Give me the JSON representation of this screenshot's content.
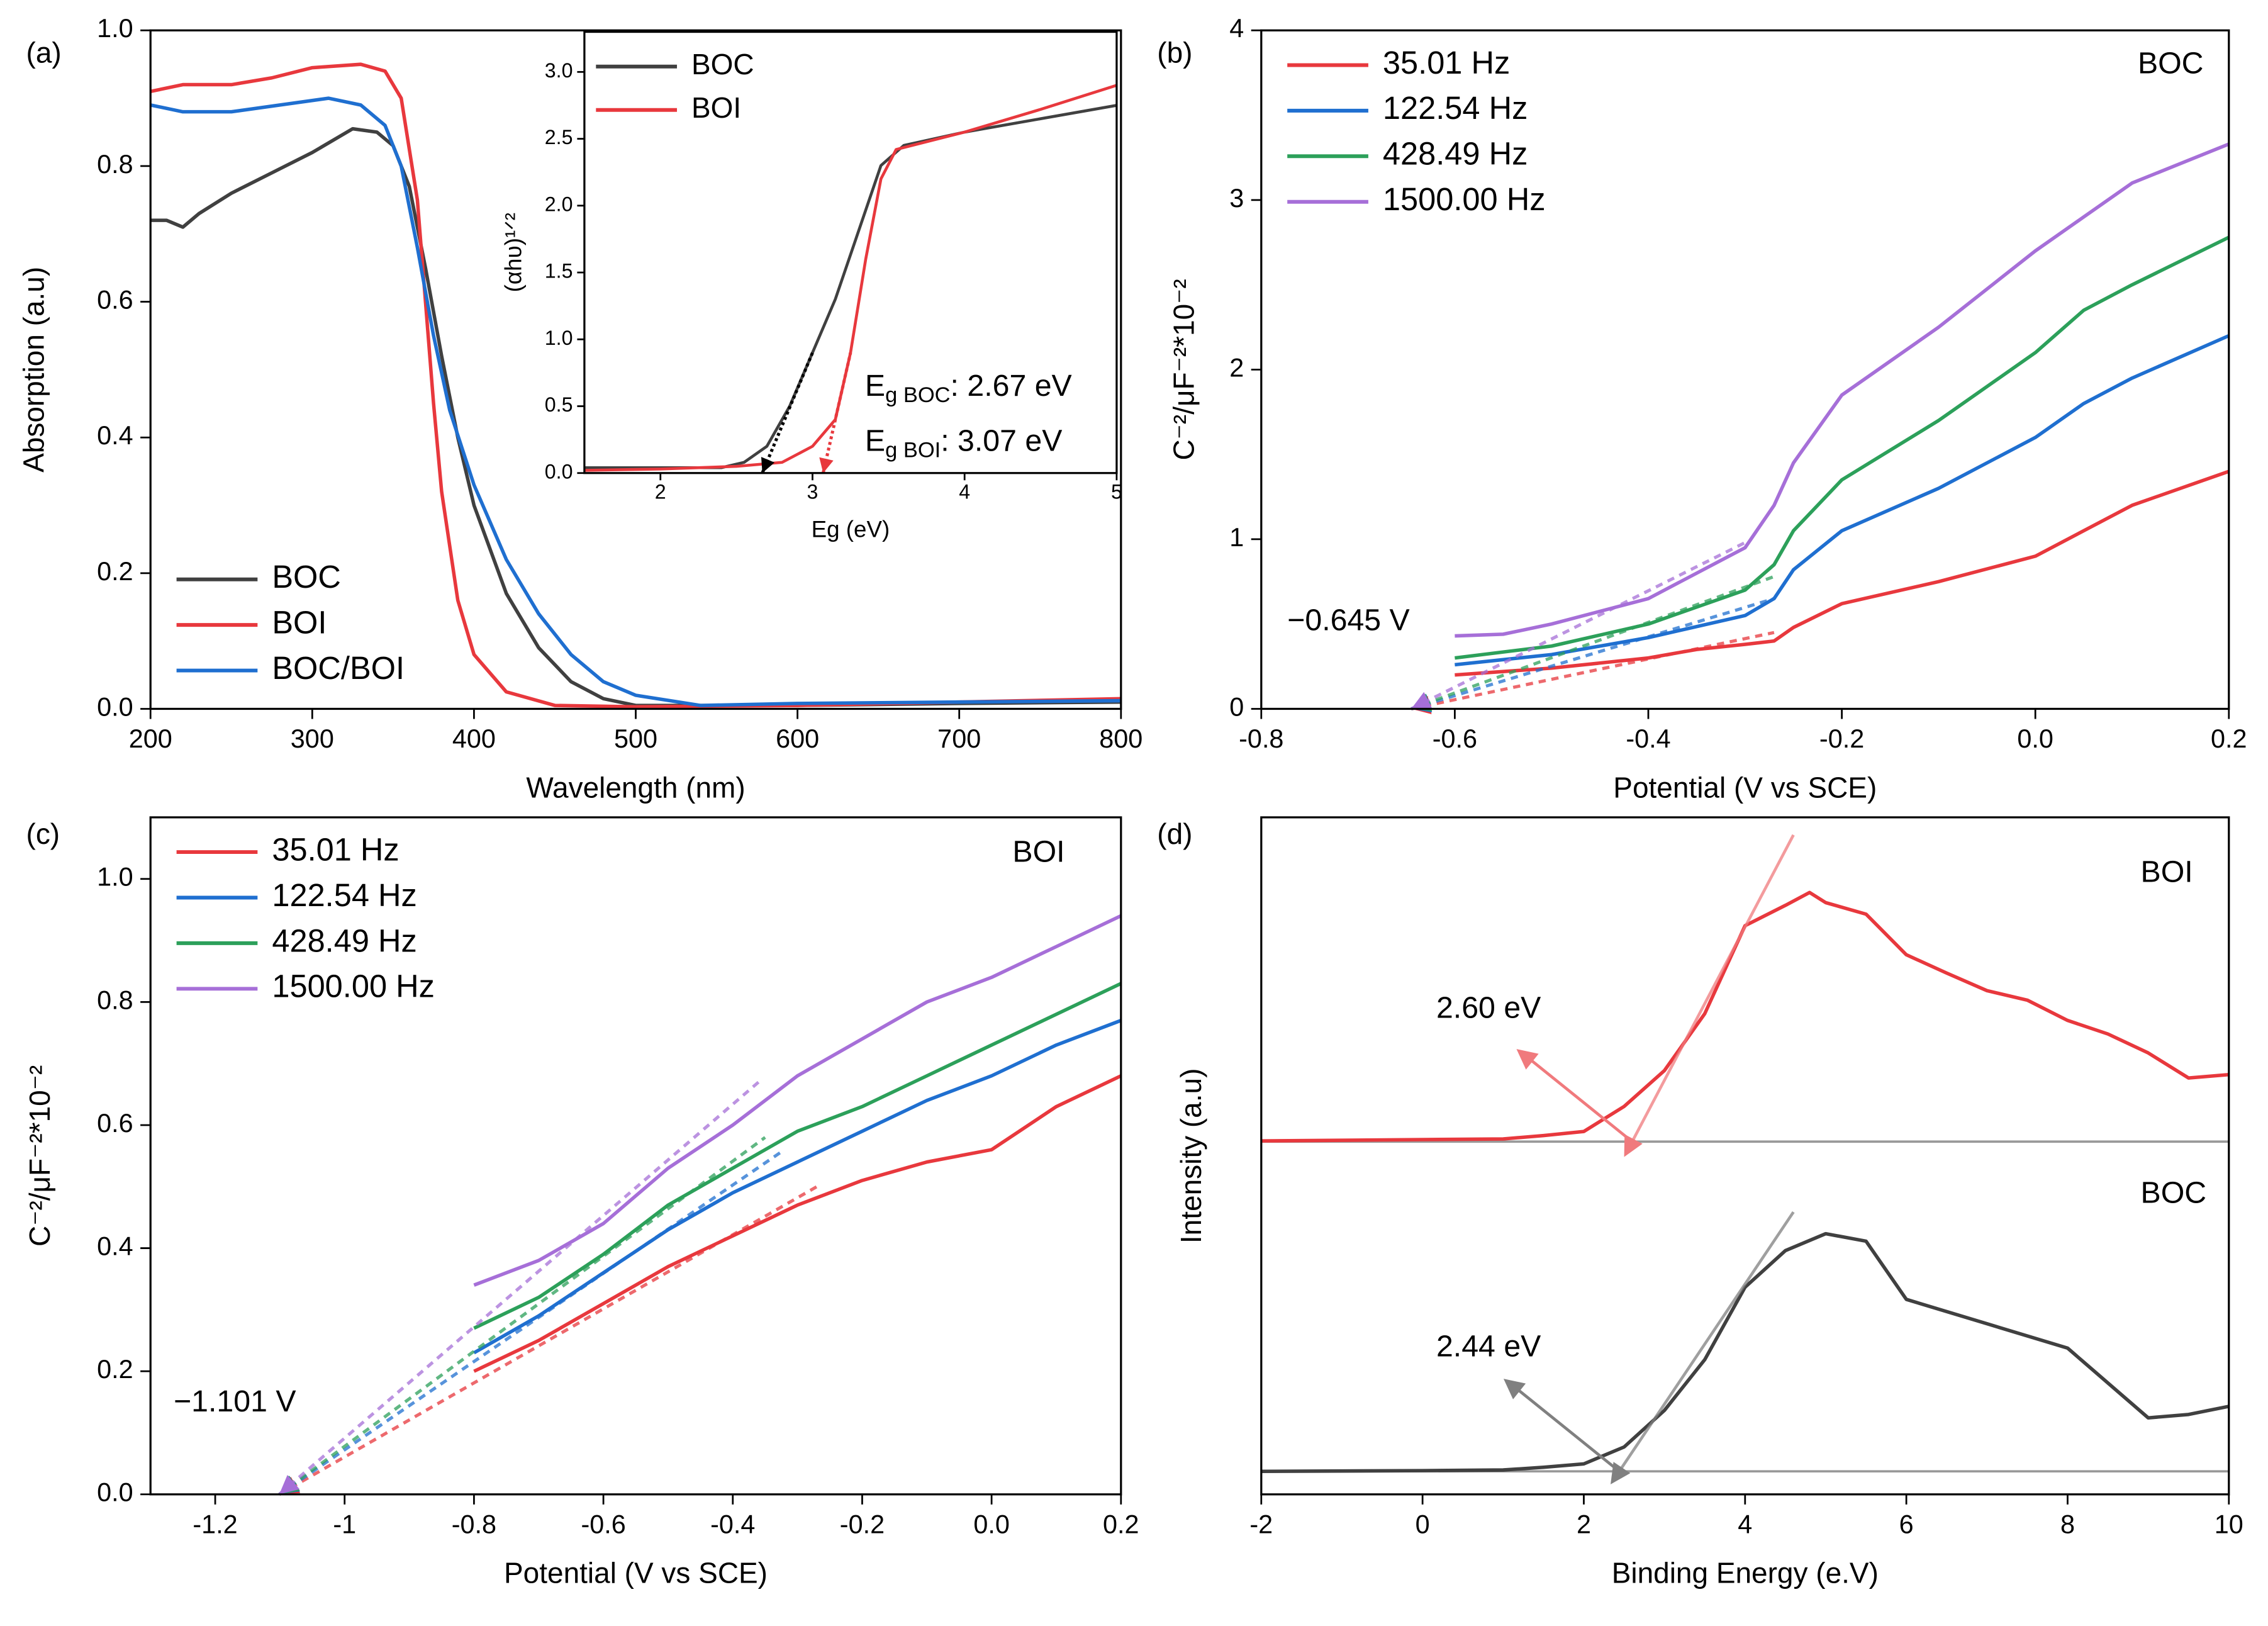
{
  "chart_data": [
    {
      "type": "line",
      "panel_label": "(a)",
      "xlabel": "Wavelength (nm)",
      "ylabel": "Absorption (a.u)",
      "xlim": [
        200,
        800
      ],
      "xticks": [
        200,
        300,
        400,
        500,
        600,
        700,
        800
      ],
      "ylim": [
        0,
        1
      ],
      "yticks": [
        {
          "value": 0,
          "label": "0.0"
        },
        0.2,
        0.4,
        0.6,
        0.8,
        {
          "value": 1,
          "label": "1.0"
        }
      ],
      "legend": "lower left",
      "series": [
        {
          "name": "BOC",
          "color": "#404040",
          "x": [
            200,
            210,
            220,
            230,
            250,
            275,
            300,
            325,
            340,
            350,
            360,
            370,
            380,
            390,
            400,
            420,
            440,
            460,
            480,
            500,
            550,
            600,
            700,
            800
          ],
          "values": [
            0.72,
            0.72,
            0.71,
            0.73,
            0.76,
            0.79,
            0.82,
            0.855,
            0.85,
            0.83,
            0.77,
            0.65,
            0.52,
            0.4,
            0.3,
            0.17,
            0.09,
            0.04,
            0.015,
            0.005,
            0.005,
            0.005,
            0.008,
            0.01
          ]
        },
        {
          "name": "BOI",
          "color": "#e8383d",
          "x": [
            200,
            220,
            250,
            275,
            300,
            330,
            345,
            355,
            365,
            370,
            375,
            380,
            390,
            400,
            420,
            450,
            500,
            600,
            700,
            800
          ],
          "values": [
            0.91,
            0.92,
            0.92,
            0.93,
            0.945,
            0.95,
            0.94,
            0.9,
            0.75,
            0.6,
            0.45,
            0.32,
            0.16,
            0.08,
            0.025,
            0.005,
            0.003,
            0.005,
            0.01,
            0.015
          ]
        },
        {
          "name": "BOC/BOI",
          "color": "#1f6fd0",
          "x": [
            200,
            220,
            250,
            280,
            310,
            330,
            345,
            355,
            365,
            375,
            385,
            400,
            420,
            440,
            460,
            480,
            500,
            540,
            600,
            700,
            800
          ],
          "values": [
            0.89,
            0.88,
            0.88,
            0.89,
            0.9,
            0.89,
            0.86,
            0.8,
            0.68,
            0.55,
            0.44,
            0.33,
            0.22,
            0.14,
            0.08,
            0.04,
            0.02,
            0.005,
            0.008,
            0.01,
            0.012
          ]
        }
      ]
    },
    {
      "type": "line",
      "inset": true,
      "xlabel": "Eg (eV)",
      "ylabel": "(αhυ)¹ᐟ²",
      "xlim": [
        1.5,
        5
      ],
      "xticks": [
        2,
        3,
        4,
        5
      ],
      "ylim": [
        0,
        3.3
      ],
      "yticks": [
        {
          "value": 0,
          "label": "0.0"
        },
        0.5,
        {
          "value": 1,
          "label": "1.0"
        },
        1.5,
        {
          "value": 2,
          "label": "2.0"
        },
        2.5,
        {
          "value": 3,
          "label": "3.0"
        }
      ],
      "legend": "upper left",
      "fit_style": "dotted",
      "series": [
        {
          "name": "BOC",
          "color": "#404040",
          "x": [
            1.5,
            2,
            2.4,
            2.55,
            2.7,
            2.85,
            3,
            3.15,
            3.3,
            3.45,
            3.6,
            4,
            4.5,
            5
          ],
          "values": [
            0.04,
            0.04,
            0.04,
            0.08,
            0.2,
            0.5,
            0.9,
            1.3,
            1.8,
            2.3,
            2.45,
            2.55,
            2.65,
            2.75
          ]
        },
        {
          "name": "BOI",
          "color": "#e8383d",
          "x": [
            1.5,
            2,
            2.5,
            2.8,
            3,
            3.15,
            3.25,
            3.35,
            3.45,
            3.55,
            4,
            4.5,
            5
          ],
          "values": [
            0.02,
            0.03,
            0.05,
            0.08,
            0.2,
            0.4,
            0.9,
            1.6,
            2.2,
            2.42,
            2.55,
            2.72,
            2.9
          ]
        }
      ],
      "fits": [
        {
          "color": "#000000",
          "x": [
            2.67,
            3.0
          ],
          "values": [
            0,
            0.9
          ]
        },
        {
          "color": "#e8383d",
          "x": [
            3.07,
            3.25
          ],
          "values": [
            0,
            0.9
          ]
        }
      ],
      "annotations": [
        {
          "text": "E",
          "sub": "g BOC",
          "rest": ": 2.67 eV"
        },
        {
          "text": "E",
          "sub": "g BOI",
          "rest": ": 3.07 eV"
        }
      ]
    },
    {
      "type": "line",
      "panel_label": "(b)",
      "xlabel": "Potential (V vs SCE)",
      "ylabel": "C⁻²/μF⁻²*10⁻²",
      "xlim": [
        -0.8,
        0.2
      ],
      "xticks": [
        -0.8,
        -0.6,
        -0.4,
        -0.2,
        {
          "value": 0,
          "label": "0.0"
        },
        0.2
      ],
      "ylim": [
        0,
        4
      ],
      "yticks": [
        0,
        1,
        2,
        3,
        4
      ],
      "legend": "upper left",
      "fit_style": "dashed",
      "series": [
        {
          "name": "35.01 Hz",
          "color": "#e8383d",
          "x": [
            -0.6,
            -0.5,
            -0.4,
            -0.35,
            -0.3,
            -0.27,
            -0.25,
            -0.2,
            -0.1,
            0,
            0.05,
            0.1,
            0.15,
            0.2
          ],
          "values": [
            0.2,
            0.24,
            0.3,
            0.35,
            0.38,
            0.4,
            0.48,
            0.62,
            0.75,
            0.9,
            1.05,
            1.2,
            1.3,
            1.4
          ]
        },
        {
          "name": "122.54 Hz",
          "color": "#1f6fd0",
          "x": [
            -0.6,
            -0.5,
            -0.4,
            -0.3,
            -0.27,
            -0.25,
            -0.2,
            -0.1,
            0,
            0.05,
            0.1,
            0.2
          ],
          "values": [
            0.26,
            0.32,
            0.42,
            0.55,
            0.65,
            0.82,
            1.05,
            1.3,
            1.6,
            1.8,
            1.95,
            2.2
          ]
        },
        {
          "name": "428.49 Hz",
          "color": "#2ca05a",
          "x": [
            -0.6,
            -0.5,
            -0.4,
            -0.3,
            -0.27,
            -0.25,
            -0.2,
            -0.1,
            0,
            0.05,
            0.1,
            0.2
          ],
          "values": [
            0.3,
            0.37,
            0.5,
            0.7,
            0.85,
            1.05,
            1.35,
            1.7,
            2.1,
            2.35,
            2.5,
            2.78
          ]
        },
        {
          "name": "1500.00 Hz",
          "color": "#a66fd8",
          "x": [
            -0.6,
            -0.55,
            -0.5,
            -0.4,
            -0.3,
            -0.27,
            -0.25,
            -0.2,
            -0.1,
            0,
            0.05,
            0.1,
            0.2
          ],
          "values": [
            0.43,
            0.44,
            0.5,
            0.65,
            0.95,
            1.2,
            1.45,
            1.85,
            2.25,
            2.7,
            2.9,
            3.1,
            3.33
          ]
        }
      ],
      "fits": [
        {
          "color": "#e8383d",
          "x": [
            -0.645,
            -0.27
          ],
          "values": [
            0,
            0.45
          ]
        },
        {
          "color": "#1f6fd0",
          "x": [
            -0.645,
            -0.27
          ],
          "values": [
            0,
            0.65
          ]
        },
        {
          "color": "#2ca05a",
          "x": [
            -0.645,
            -0.27
          ],
          "values": [
            0,
            0.78
          ]
        },
        {
          "color": "#a66fd8",
          "x": [
            -0.645,
            -0.3
          ],
          "values": [
            0,
            0.98
          ]
        }
      ],
      "annotations": [
        {
          "text": "−0.645 V"
        },
        {
          "text": "BOC"
        }
      ]
    },
    {
      "type": "line",
      "panel_label": "(c)",
      "xlabel": "Potential (V vs SCE)",
      "ylabel": "C⁻²/μF⁻²*10⁻²",
      "xlim": [
        -1.3,
        0.2
      ],
      "xticks": [
        -1.2,
        -1,
        -0.8,
        -0.6,
        -0.4,
        -0.2,
        {
          "value": 0,
          "label": "0.0"
        },
        0.2
      ],
      "ylim": [
        0,
        1.1
      ],
      "yticks": [
        {
          "value": 0,
          "label": "0.0"
        },
        0.2,
        0.4,
        0.6,
        0.8,
        {
          "value": 1,
          "label": "1.0"
        }
      ],
      "legend": "upper left",
      "fit_style": "dashed",
      "series": [
        {
          "name": "35.01 Hz",
          "color": "#e8383d",
          "x": [
            -0.8,
            -0.7,
            -0.6,
            -0.5,
            -0.4,
            -0.3,
            -0.2,
            -0.1,
            0,
            0.1,
            0.2
          ],
          "values": [
            0.2,
            0.25,
            0.31,
            0.37,
            0.42,
            0.47,
            0.51,
            0.54,
            0.56,
            0.63,
            0.68
          ]
        },
        {
          "name": "122.54 Hz",
          "color": "#1f6fd0",
          "x": [
            -0.8,
            -0.7,
            -0.6,
            -0.5,
            -0.4,
            -0.3,
            -0.2,
            -0.1,
            0,
            0.1,
            0.2
          ],
          "values": [
            0.23,
            0.29,
            0.36,
            0.43,
            0.49,
            0.54,
            0.59,
            0.64,
            0.68,
            0.73,
            0.77
          ]
        },
        {
          "name": "428.49 Hz",
          "color": "#2ca05a",
          "x": [
            -0.8,
            -0.7,
            -0.6,
            -0.5,
            -0.4,
            -0.3,
            -0.2,
            -0.1,
            0,
            0.1,
            0.2
          ],
          "values": [
            0.27,
            0.32,
            0.39,
            0.47,
            0.53,
            0.59,
            0.63,
            0.68,
            0.73,
            0.78,
            0.83
          ]
        },
        {
          "name": "1500.00 Hz",
          "color": "#a66fd8",
          "x": [
            -0.8,
            -0.7,
            -0.6,
            -0.5,
            -0.4,
            -0.3,
            -0.2,
            -0.1,
            0,
            0.1,
            0.2
          ],
          "values": [
            0.34,
            0.38,
            0.44,
            0.53,
            0.6,
            0.68,
            0.74,
            0.8,
            0.84,
            0.89,
            0.94
          ]
        }
      ],
      "fits": [
        {
          "color": "#e8383d",
          "x": [
            -1.101,
            -0.27
          ],
          "values": [
            0,
            0.5
          ]
        },
        {
          "color": "#1f6fd0",
          "x": [
            -1.101,
            -0.32
          ],
          "values": [
            0,
            0.56
          ]
        },
        {
          "color": "#2ca05a",
          "x": [
            -1.101,
            -0.35
          ],
          "values": [
            0,
            0.58
          ]
        },
        {
          "color": "#a66fd8",
          "x": [
            -1.101,
            -0.36
          ],
          "values": [
            0,
            0.67
          ]
        }
      ],
      "annotations": [
        {
          "text": "−1.101 V"
        },
        {
          "text": "BOI"
        }
      ]
    },
    {
      "type": "line",
      "panel_label": "(d)",
      "xlabel": "Binding Energy (e.V)",
      "ylabel": "Intensity (a.u)",
      "xlim": [
        -2,
        10
      ],
      "xticks": [
        -2,
        0,
        2,
        4,
        6,
        8,
        10
      ],
      "ylim": [
        0,
        1
      ],
      "legend": "inline",
      "fit_style": "solid",
      "label_arrows": true,
      "baselines": [
        0.521,
        0.034
      ],
      "series": [
        {
          "name": "BOI",
          "color": "#e8383d",
          "x": [
            -2,
            0,
            1,
            1.5,
            2,
            2.5,
            3,
            3.5,
            4,
            4.5,
            4.8,
            5,
            5.5,
            6,
            6.5,
            7,
            7.5,
            8,
            8.5,
            9,
            9.5,
            10
          ],
          "values": [
            0.522,
            0.524,
            0.525,
            0.53,
            0.536,
            0.573,
            0.626,
            0.71,
            0.84,
            0.87,
            0.889,
            0.874,
            0.857,
            0.797,
            0.77,
            0.744,
            0.73,
            0.7,
            0.68,
            0.652,
            0.615,
            0.62
          ]
        },
        {
          "name": "BOC",
          "color": "#404040",
          "x": [
            -2,
            0,
            1,
            1.5,
            2,
            2.5,
            3,
            3.5,
            4,
            4.5,
            5,
            5.5,
            6,
            7,
            8,
            9,
            9.5,
            10
          ],
          "values": [
            0.034,
            0.035,
            0.036,
            0.04,
            0.045,
            0.07,
            0.124,
            0.199,
            0.306,
            0.36,
            0.385,
            0.374,
            0.288,
            0.252,
            0.216,
            0.113,
            0.118,
            0.13
          ]
        }
      ],
      "fits": [
        {
          "color": "#f07a7d",
          "x": [
            2.6,
            4.6
          ],
          "values": [
            0.521,
            0.974
          ]
        },
        {
          "color": "#808080",
          "x": [
            2.44,
            4.6
          ],
          "values": [
            0.034,
            0.417
          ]
        }
      ],
      "annotations": [
        {
          "text": "2.60 eV"
        },
        {
          "text": "2.44 eV"
        }
      ]
    }
  ]
}
